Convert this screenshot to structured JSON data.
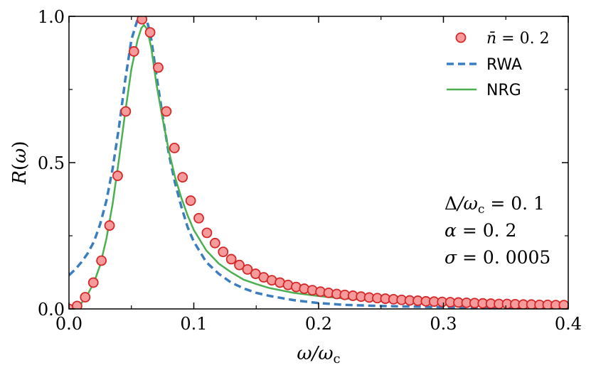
{
  "chart_data": {
    "type": "line",
    "title": "",
    "xlabel": "ω/ω_c",
    "ylabel": "R(ω)",
    "xlim": [
      0.0,
      0.4
    ],
    "ylim": [
      0.0,
      1.0
    ],
    "xticks": [
      "0.0",
      "0.1",
      "0.2",
      "0.3",
      "0.4"
    ],
    "yticks": [
      "0.0",
      "0.5",
      "1.0"
    ],
    "legend_position": "top-right",
    "annotations": [
      "Δ/ω_c = 0.1",
      "α = 0.2",
      "σ = 0.0005"
    ],
    "series": [
      {
        "name": "n̄ = 0.2",
        "style": "markers",
        "color": "#f59b9b",
        "edge_color": "#d62728",
        "x": [
          0.0,
          0.0065,
          0.013,
          0.0195,
          0.026,
          0.0325,
          0.039,
          0.0455,
          0.052,
          0.0585,
          0.065,
          0.0715,
          0.078,
          0.0845,
          0.091,
          0.0975,
          0.104,
          0.1105,
          0.117,
          0.1235,
          0.13,
          0.1365,
          0.143,
          0.1495,
          0.156,
          0.1625,
          0.169,
          0.1755,
          0.182,
          0.1885,
          0.195,
          0.2015,
          0.208,
          0.2145,
          0.221,
          0.2275,
          0.234,
          0.2405,
          0.247,
          0.2535,
          0.26,
          0.2665,
          0.273,
          0.2795,
          0.286,
          0.2925,
          0.299,
          0.3055,
          0.312,
          0.3185,
          0.325,
          0.3315,
          0.338,
          0.3445,
          0.351,
          0.3575,
          0.364,
          0.3705,
          0.377,
          0.3835,
          0.39,
          0.3965
        ],
        "y": [
          0.0,
          0.01,
          0.04,
          0.09,
          0.165,
          0.285,
          0.455,
          0.675,
          0.88,
          0.99,
          0.945,
          0.825,
          0.675,
          0.55,
          0.45,
          0.37,
          0.31,
          0.26,
          0.225,
          0.195,
          0.17,
          0.15,
          0.135,
          0.12,
          0.108,
          0.098,
          0.09,
          0.082,
          0.075,
          0.069,
          0.064,
          0.059,
          0.055,
          0.051,
          0.048,
          0.045,
          0.042,
          0.039,
          0.037,
          0.035,
          0.033,
          0.031,
          0.029,
          0.028,
          0.026,
          0.025,
          0.024,
          0.023,
          0.022,
          0.021,
          0.02,
          0.019,
          0.018,
          0.017,
          0.017,
          0.016,
          0.015,
          0.015,
          0.014,
          0.014,
          0.013,
          0.013
        ]
      },
      {
        "name": "RWA",
        "style": "dashed",
        "color": "#3a7ebf",
        "x": [
          0.0,
          0.005,
          0.01,
          0.015,
          0.02,
          0.025,
          0.03,
          0.035,
          0.04,
          0.045,
          0.05,
          0.055,
          0.058,
          0.06,
          0.062,
          0.064,
          0.066,
          0.068,
          0.07,
          0.075,
          0.08,
          0.085,
          0.09,
          0.095,
          0.1,
          0.11,
          0.12,
          0.13,
          0.14,
          0.15,
          0.16,
          0.18,
          0.2,
          0.22,
          0.25,
          0.3,
          0.35,
          0.4
        ],
        "y": [
          0.115,
          0.135,
          0.16,
          0.19,
          0.23,
          0.29,
          0.37,
          0.48,
          0.62,
          0.78,
          0.92,
          0.99,
          1.0,
          1.0,
          0.99,
          0.96,
          0.92,
          0.86,
          0.8,
          0.66,
          0.53,
          0.43,
          0.35,
          0.28,
          0.23,
          0.16,
          0.12,
          0.09,
          0.07,
          0.055,
          0.045,
          0.03,
          0.02,
          0.014,
          0.01,
          0.006,
          0.003,
          0.002
        ]
      },
      {
        "name": "NRG",
        "style": "solid",
        "color": "#4caf50",
        "x": [
          0.0,
          0.005,
          0.01,
          0.015,
          0.02,
          0.025,
          0.03,
          0.035,
          0.04,
          0.045,
          0.05,
          0.055,
          0.058,
          0.06,
          0.062,
          0.064,
          0.066,
          0.068,
          0.07,
          0.075,
          0.08,
          0.085,
          0.09,
          0.095,
          0.1,
          0.11,
          0.12,
          0.13,
          0.14,
          0.15,
          0.16,
          0.18,
          0.2,
          0.22,
          0.25,
          0.3,
          0.35,
          0.4
        ],
        "y": [
          0.0,
          0.005,
          0.02,
          0.05,
          0.09,
          0.15,
          0.24,
          0.36,
          0.51,
          0.67,
          0.82,
          0.92,
          0.96,
          0.97,
          0.96,
          0.93,
          0.89,
          0.83,
          0.77,
          0.65,
          0.54,
          0.45,
          0.38,
          0.32,
          0.27,
          0.2,
          0.155,
          0.125,
          0.1,
          0.085,
          0.072,
          0.055,
          0.044,
          0.036,
          0.028,
          0.019,
          0.014,
          0.011
        ]
      }
    ]
  }
}
